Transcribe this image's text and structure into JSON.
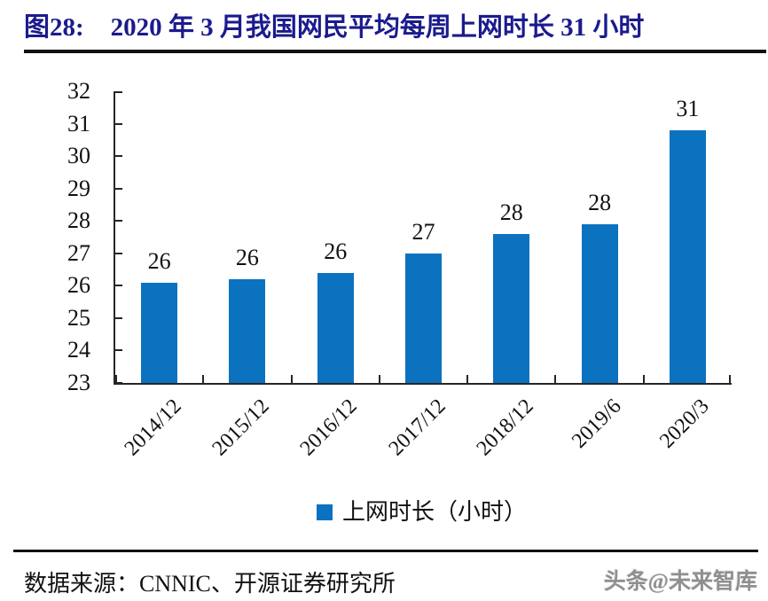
{
  "header": {
    "figure_label": "图28:",
    "title": "2020 年 3 月我国网民平均每周上网时长 31 小时"
  },
  "chart_data": {
    "type": "bar",
    "categories": [
      "2014/12",
      "2015/12",
      "2016/12",
      "2017/12",
      "2018/12",
      "2019/6",
      "2020/3"
    ],
    "values": [
      26.1,
      26.2,
      26.4,
      27.0,
      27.6,
      27.9,
      30.8
    ],
    "data_labels": [
      "26",
      "26",
      "26",
      "27",
      "28",
      "28",
      "31"
    ],
    "title": "",
    "xlabel": "",
    "ylabel": "",
    "ylim": [
      23,
      32
    ],
    "yticks": [
      23,
      24,
      25,
      26,
      27,
      28,
      29,
      30,
      31,
      32
    ],
    "grid": false,
    "bar_color": "#0b72c0",
    "legend_position": "bottom",
    "legend": [
      {
        "label": "上网时长（小时）",
        "color": "#0b72c0"
      }
    ]
  },
  "footer": {
    "source": "数据来源：CNNIC、开源证券研究所",
    "watermark": "头条@未来智库"
  },
  "colors": {
    "accent_blue": "#0b72c0",
    "title_navy": "#1b1b8e",
    "axis": "#262626",
    "rule": "#111111"
  }
}
